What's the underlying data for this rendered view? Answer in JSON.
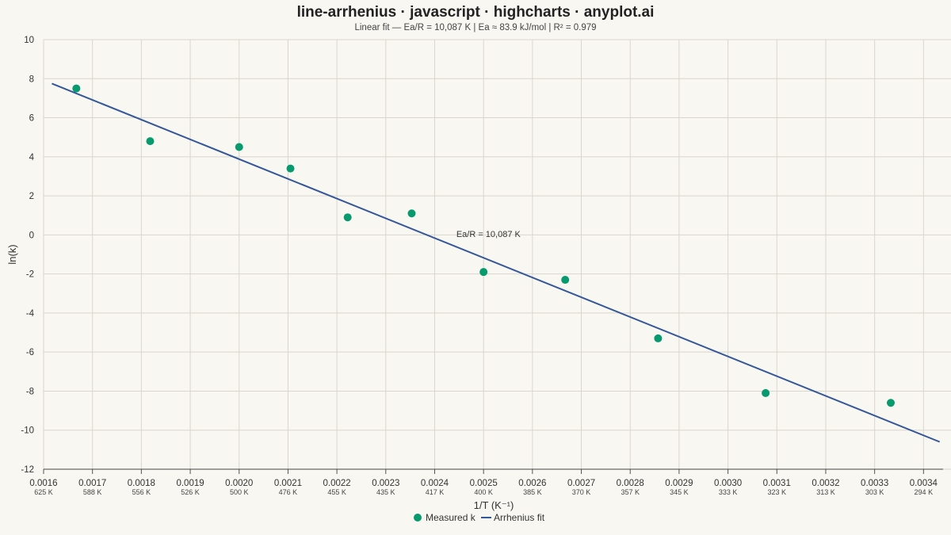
{
  "chart_data": {
    "type": "scatter",
    "title": "line-arrhenius · javascript · highcharts · anyplot.ai",
    "subtitle": "Linear fit — Ea/R = 10,087 K | Ea ≈ 83.9 kJ/mol | R² = 0.979",
    "xlabel": "1/T (K⁻¹)",
    "ylabel": "ln(k)",
    "xlim": [
      0.0016,
      0.00344
    ],
    "ylim": [
      -12,
      10
    ],
    "grid": true,
    "legend_position": "bottom-center",
    "x_ticks": [
      {
        "value": 0.0016,
        "label": "0.0016",
        "kelvin": "625 K"
      },
      {
        "value": 0.0017,
        "label": "0.0017",
        "kelvin": "588 K"
      },
      {
        "value": 0.0018,
        "label": "0.0018",
        "kelvin": "556 K"
      },
      {
        "value": 0.0019,
        "label": "0.0019",
        "kelvin": "526 K"
      },
      {
        "value": 0.002,
        "label": "0.0020",
        "kelvin": "500 K"
      },
      {
        "value": 0.0021,
        "label": "0.0021",
        "kelvin": "476 K"
      },
      {
        "value": 0.0022,
        "label": "0.0022",
        "kelvin": "455 K"
      },
      {
        "value": 0.0023,
        "label": "0.0023",
        "kelvin": "435 K"
      },
      {
        "value": 0.0024,
        "label": "0.0024",
        "kelvin": "417 K"
      },
      {
        "value": 0.0025,
        "label": "0.0025",
        "kelvin": "400 K"
      },
      {
        "value": 0.0026,
        "label": "0.0026",
        "kelvin": "385 K"
      },
      {
        "value": 0.0027,
        "label": "0.0027",
        "kelvin": "370 K"
      },
      {
        "value": 0.0028,
        "label": "0.0028",
        "kelvin": "357 K"
      },
      {
        "value": 0.0029,
        "label": "0.0029",
        "kelvin": "345 K"
      },
      {
        "value": 0.003,
        "label": "0.0030",
        "kelvin": "333 K"
      },
      {
        "value": 0.0031,
        "label": "0.0031",
        "kelvin": "323 K"
      },
      {
        "value": 0.0032,
        "label": "0.0032",
        "kelvin": "313 K"
      },
      {
        "value": 0.0033,
        "label": "0.0033",
        "kelvin": "303 K"
      },
      {
        "value": 0.0034,
        "label": "0.0034",
        "kelvin": "294 K"
      }
    ],
    "y_ticks": [
      10,
      8,
      6,
      4,
      2,
      0,
      -2,
      -4,
      -6,
      -8,
      -10,
      -12
    ],
    "series": [
      {
        "name": "Measured k",
        "kind": "scatter",
        "color": "#069A6E",
        "points": [
          {
            "x": 0.001667,
            "y": 7.5
          },
          {
            "x": 0.001818,
            "y": 4.8
          },
          {
            "x": 0.002,
            "y": 4.5
          },
          {
            "x": 0.002105,
            "y": 3.4
          },
          {
            "x": 0.002222,
            "y": 0.9
          },
          {
            "x": 0.002353,
            "y": 1.1
          },
          {
            "x": 0.0025,
            "y": -1.9
          },
          {
            "x": 0.002667,
            "y": -2.3
          },
          {
            "x": 0.002857,
            "y": -5.3
          },
          {
            "x": 0.003077,
            "y": -8.1
          },
          {
            "x": 0.003333,
            "y": -8.6
          }
        ]
      },
      {
        "name": "Arrhenius fit",
        "kind": "line",
        "color": "#34579A",
        "points": [
          {
            "x": 0.001617,
            "y": 7.75
          },
          {
            "x": 0.003433,
            "y": -10.6
          }
        ]
      }
    ],
    "annotation": {
      "text": "Ea/R = 10,087 K",
      "x": 0.00251,
      "y": 0.05
    }
  }
}
